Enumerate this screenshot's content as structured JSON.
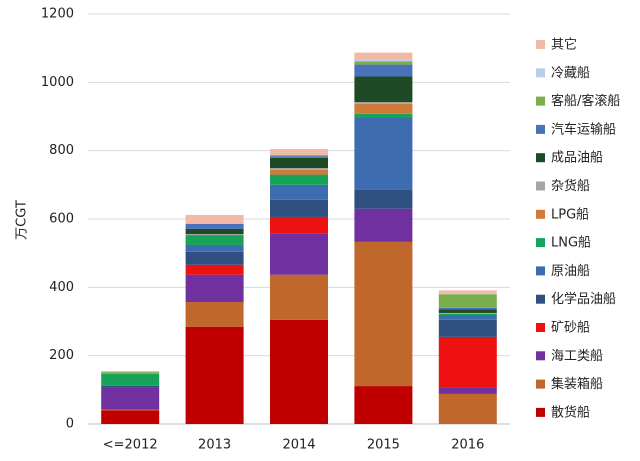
{
  "chart_data": {
    "type": "bar",
    "stacked": true,
    "y_label": "万CGT",
    "categories": [
      "<=2012",
      "2013",
      "2014",
      "2015",
      "2016"
    ],
    "ylim": [
      0,
      1200
    ],
    "yticks": [
      0,
      200,
      400,
      600,
      800,
      1000,
      1200
    ],
    "grid": true,
    "series": [
      {
        "name": "散货船",
        "color": "#c00000",
        "values": [
          40,
          284,
          305,
          111,
          0
        ]
      },
      {
        "name": "集装箱船",
        "color": "#c0672c",
        "values": [
          2,
          73,
          132,
          422,
          88
        ]
      },
      {
        "name": "海工类船",
        "color": "#7030a0",
        "values": [
          65,
          80,
          120,
          97,
          20
        ]
      },
      {
        "name": "矿砂船",
        "color": "#ee1111",
        "values": [
          0,
          29,
          49,
          0,
          147
        ]
      },
      {
        "name": "化学品油船",
        "color": "#2f4f80",
        "values": [
          5,
          38,
          50,
          56,
          50
        ]
      },
      {
        "name": "原油船",
        "color": "#3d6db0",
        "values": [
          0,
          20,
          44,
          211,
          14
        ]
      },
      {
        "name": "LNG船",
        "color": "#17a35a",
        "values": [
          35,
          29,
          30,
          11,
          3
        ]
      },
      {
        "name": "LPG船",
        "color": "#d07a3a",
        "values": [
          0,
          0,
          14,
          29,
          0
        ]
      },
      {
        "name": "杂货船",
        "color": "#a6a6a6",
        "values": [
          0,
          3,
          5,
          5,
          3
        ]
      },
      {
        "name": "成品油船",
        "color": "#1f4a26",
        "values": [
          0,
          15,
          30,
          75,
          10
        ]
      },
      {
        "name": "汽车运输船",
        "color": "#4a72b8",
        "values": [
          0,
          15,
          5,
          35,
          5
        ]
      },
      {
        "name": "客船/客滚船",
        "color": "#7aad4c",
        "values": [
          5,
          0,
          3,
          9,
          40
        ]
      },
      {
        "name": "冷藏船",
        "color": "#b9cde6",
        "values": [
          0,
          0,
          0,
          6,
          3
        ]
      },
      {
        "name": "其它",
        "color": "#f2b9a9",
        "values": [
          3,
          26,
          18,
          20,
          8
        ]
      }
    ]
  }
}
